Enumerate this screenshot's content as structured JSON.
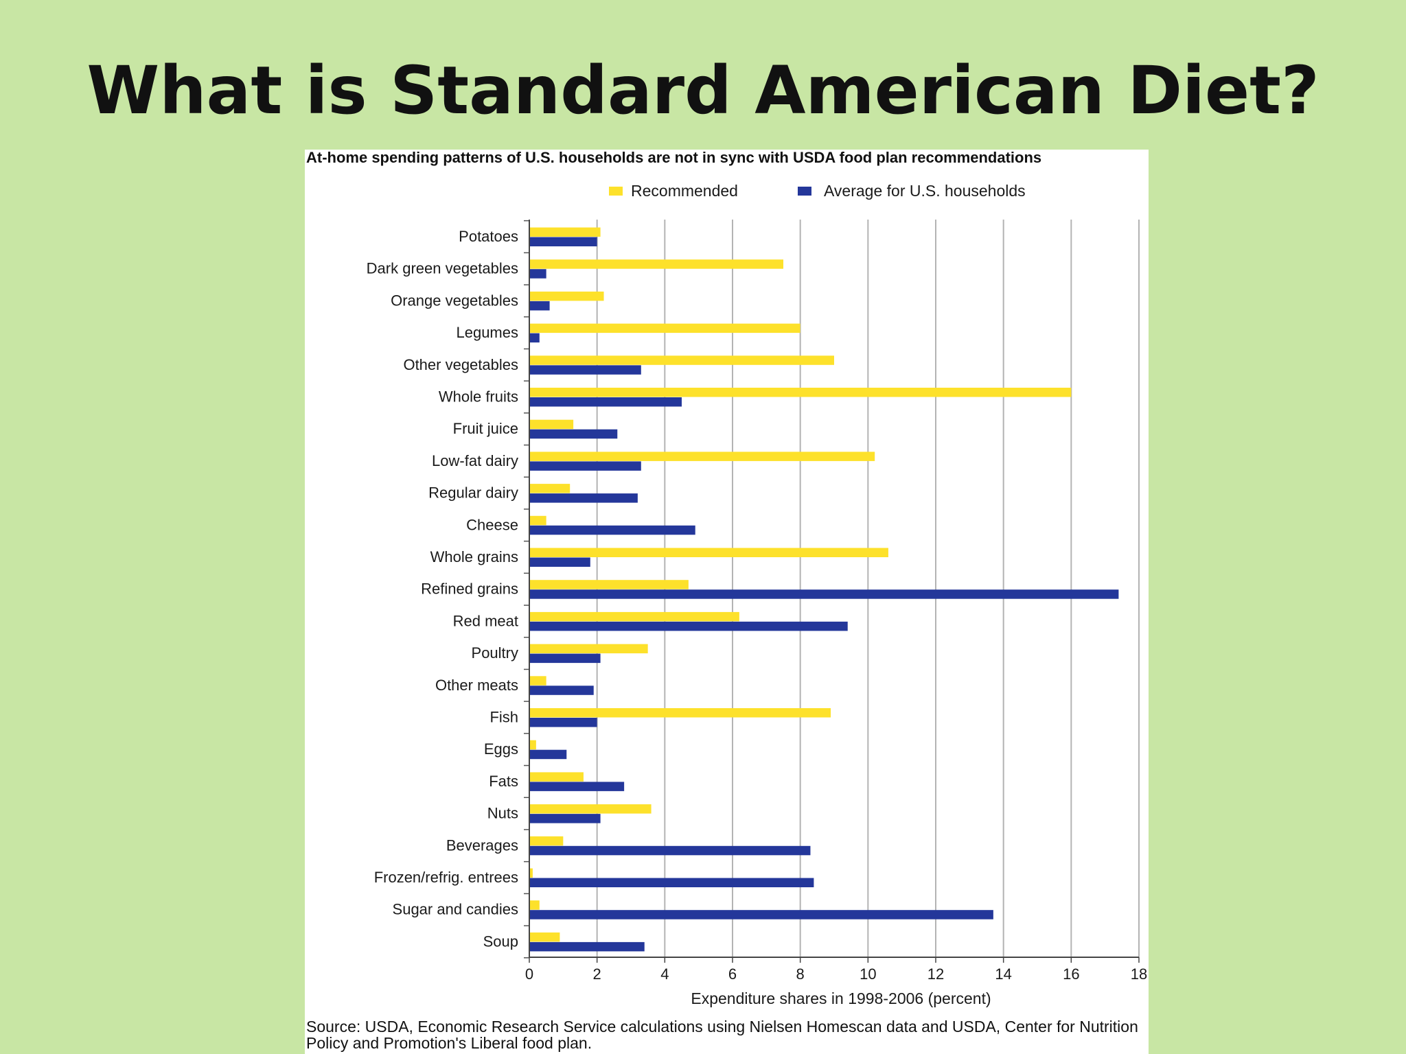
{
  "slide": {
    "title": "What is Standard American Diet?"
  },
  "colors": {
    "background": "#c8e6a4",
    "recommended": "#fde12b",
    "average": "#24379a",
    "grid": "#b3b3b3"
  },
  "chart_data": {
    "type": "bar",
    "orientation": "horizontal",
    "title": "At-home spending patterns of U.S. households are not in sync with USDA food plan recommendations",
    "xlabel": "Expenditure shares in 1998-2006 (percent)",
    "ylabel": "",
    "xlim": [
      0,
      18
    ],
    "xticks": [
      "0",
      "2",
      "4",
      "6",
      "8",
      "10",
      "12",
      "14",
      "16",
      "18"
    ],
    "grid": "vertical",
    "legend_position": "top-right",
    "source": "Source: USDA, Economic Research Service calculations using Nielsen Homescan data and USDA, Center for Nutrition Policy and Promotion's Liberal food plan.",
    "categories": [
      "Potatoes",
      "Dark green vegetables",
      "Orange vegetables",
      "Legumes",
      "Other vegetables",
      "Whole fruits",
      "Fruit juice",
      "Low-fat dairy",
      "Regular dairy",
      "Cheese",
      "Whole grains",
      "Refined grains",
      "Red meat",
      "Poultry",
      "Other meats",
      "Fish",
      "Eggs",
      "Fats",
      "Nuts",
      "Beverages",
      "Frozen/refrig. entrees",
      "Sugar and candies",
      "Soup"
    ],
    "series": [
      {
        "name": "Recommended",
        "values": [
          2.1,
          7.5,
          2.2,
          8.0,
          9.0,
          16.0,
          1.3,
          10.2,
          1.2,
          0.5,
          10.6,
          4.7,
          6.2,
          3.5,
          0.5,
          8.9,
          0.2,
          1.6,
          3.6,
          1.0,
          0.1,
          0.3,
          0.9
        ]
      },
      {
        "name": "Average for U.S. households",
        "values": [
          2.0,
          0.5,
          0.6,
          0.3,
          3.3,
          4.5,
          2.6,
          3.3,
          3.2,
          4.9,
          1.8,
          17.4,
          9.4,
          2.1,
          1.9,
          2.0,
          1.1,
          2.8,
          2.1,
          8.3,
          8.4,
          13.7,
          3.4
        ]
      }
    ]
  }
}
